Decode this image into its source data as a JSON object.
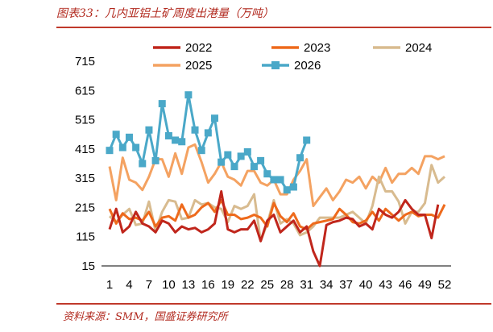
{
  "header": {
    "title": "图表33：几内亚铝土矿周度出港量（万吨）"
  },
  "footer": {
    "source": "资料来源：SMM，国盛证券研究所"
  },
  "chart_data": {
    "type": "line",
    "ylim": [
      15,
      715
    ],
    "yticks": [
      15,
      115,
      215,
      315,
      415,
      515,
      615,
      715
    ],
    "xlim": [
      1,
      52
    ],
    "xticks": [
      1,
      4,
      7,
      10,
      13,
      16,
      19,
      22,
      25,
      28,
      31,
      34,
      37,
      40,
      43,
      46,
      49,
      52
    ],
    "legend_position": "top",
    "series": [
      {
        "name": "2022",
        "color": "#c0261c",
        "width": 3,
        "marker": false,
        "values": [
          140,
          210,
          130,
          150,
          200,
          160,
          150,
          130,
          170,
          160,
          130,
          150,
          140,
          145,
          130,
          140,
          160,
          270,
          140,
          130,
          140,
          140,
          170,
          100,
          170,
          190,
          130,
          150,
          170,
          130,
          150,
          65,
          15,
          155,
          165,
          170,
          180,
          175,
          150,
          160,
          140,
          210,
          190,
          180,
          200,
          240,
          210,
          190,
          190,
          110,
          225,
          "null"
        ]
      },
      {
        "name": "2023",
        "color": "#ee6a1c",
        "width": 3,
        "marker": false,
        "values": [
          210,
          160,
          195,
          175,
          180,
          170,
          200,
          150,
          180,
          185,
          170,
          225,
          180,
          190,
          215,
          230,
          200,
          240,
          190,
          190,
          175,
          180,
          190,
          180,
          150,
          230,
          185,
          165,
          195,
          150,
          140,
          160,
          165,
          170,
          175,
          210,
          190,
          165,
          160,
          170,
          200,
          170,
          210,
          190,
          170,
          190,
          200,
          185,
          190,
          190,
          180,
          225
        ]
      },
      {
        "name": "2024",
        "color": "#d8bb8f",
        "width": 3,
        "marker": false,
        "values": [
          185,
          165,
          190,
          210,
          155,
          160,
          235,
          135,
          200,
          240,
          235,
          175,
          180,
          240,
          225,
          230,
          215,
          210,
          165,
          220,
          210,
          220,
          260,
          100,
          160,
          240,
          160,
          175,
          160,
          120,
          130,
          150,
          180,
          180,
          180,
          180,
          190,
          200,
          180,
          160,
          220,
          320,
          270,
          270,
          235,
          160,
          200,
          200,
          230,
          360,
          300,
          320
        ]
      },
      {
        "name": "2025",
        "color": "#f4a261",
        "width": 3,
        "marker": false,
        "values": [
          355,
          240,
          385,
          310,
          300,
          275,
          320,
          380,
          380,
          320,
          400,
          330,
          420,
          430,
          370,
          300,
          330,
          370,
          320,
          310,
          290,
          340,
          340,
          300,
          290,
          310,
          260,
          260,
          310,
          340,
          380,
          220,
          250,
          280,
          240,
          270,
          310,
          300,
          320,
          280,
          320,
          300,
          350,
          300,
          330,
          330,
          350,
          330,
          390,
          390,
          380,
          390
        ]
      },
      {
        "name": "2026",
        "color": "#4aa8c8",
        "width": 3,
        "marker": true,
        "values": [
          410,
          465,
          420,
          455,
          420,
          365,
          480,
          375,
          570,
          460,
          445,
          440,
          600,
          480,
          410,
          470,
          520,
          370,
          395,
          355,
          390,
          405,
          355,
          375,
          330,
          310,
          310,
          275,
          285,
          385,
          445,
          "null",
          "null",
          "null",
          "null",
          "null",
          "null",
          "null",
          "null",
          "null",
          "null",
          "null",
          "null",
          "null",
          "null",
          "null",
          "null",
          "null",
          "null",
          "null",
          "null",
          "null"
        ]
      }
    ]
  }
}
